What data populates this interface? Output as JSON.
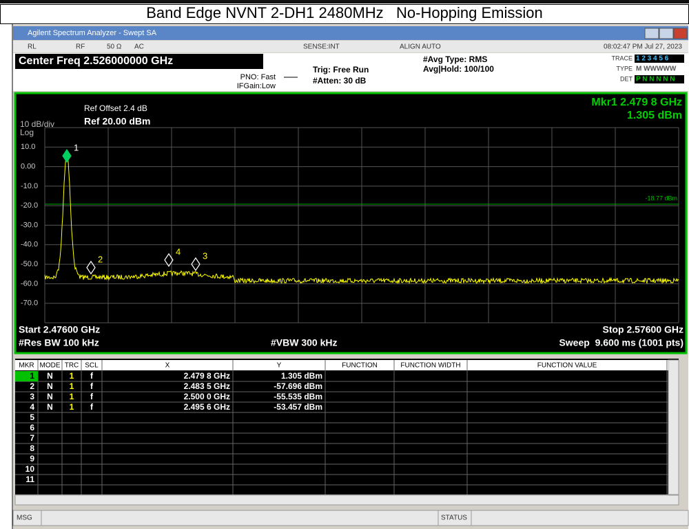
{
  "page_title": "Band Edge NVNT 2-DH1 2480MHz   No-Hopping Emission",
  "window_title": "Agilent Spectrum Analyzer - Swept SA",
  "status_row": [
    "RL",
    "RF",
    "50 Ω",
    "AC",
    "SENSE:INT",
    "ALIGN AUTO",
    "08:02:47 PM Jul 27, 2023"
  ],
  "header": {
    "center_freq": "Center Freq 2.526000000 GHz",
    "pno": "PNO: Fast",
    "ifgain": "IFGain:Low",
    "trig": "Trig: Free Run",
    "atten": "#Atten: 30 dB",
    "avg_type": "#Avg Type: RMS",
    "avg_hold": "Avg|Hold: 100/100",
    "trace": [
      "TRACE",
      "1 2 3 4 5 6"
    ],
    "type": [
      "TYPE",
      "M WWWWW"
    ],
    "det": [
      "DET",
      "P N N N N N"
    ]
  },
  "plot": {
    "ref_offset": "Ref Offset 2.4 dB",
    "scale": "10 dB/div",
    "ref_level": "Ref 20.00 dBm",
    "scale_type": "Log",
    "marker_freq": "Mkr1 2.479 8 GHz",
    "marker_amp": "1.305 dBm",
    "y_labels": [
      "10.0",
      "0.00",
      "-10.0",
      "-20.0",
      "-30.0",
      "-40.0",
      "-50.0",
      "-60.0",
      "-70.0"
    ],
    "display_line": "-18.77 dBm",
    "marker_ids": [
      "1",
      "2",
      "3",
      "4"
    ],
    "start": "Start 2.47600 GHz",
    "stop": "Stop 2.57600 GHz",
    "rbw": "#Res BW 100 kHz",
    "vbw": "#VBW 300 kHz",
    "sweep": "Sweep  9.600 ms (1001 pts)"
  },
  "marker_table": {
    "columns": [
      "MKR",
      "MODE",
      "TRC",
      "SCL",
      "X",
      "Y",
      "FUNCTION",
      "FUNCTION WIDTH",
      "FUNCTION VALUE"
    ],
    "rows": [
      [
        "1",
        "N",
        "1",
        "f",
        "2.479 8 GHz",
        "1.305 dBm"
      ],
      [
        "2",
        "N",
        "1",
        "f",
        "2.483 5 GHz",
        "-57.696 dBm"
      ],
      [
        "3",
        "N",
        "1",
        "f",
        "2.500 0 GHz",
        "-55.535 dBm"
      ],
      [
        "4",
        "N",
        "1",
        "f",
        "2.495 6 GHz",
        "-53.457 dBm"
      ],
      [
        "5"
      ],
      [
        "6"
      ],
      [
        "7"
      ],
      [
        "8"
      ],
      [
        "9"
      ],
      [
        "10"
      ],
      [
        "11"
      ]
    ]
  },
  "message_bar": {
    "msg": "MSG",
    "status": "STATUS"
  }
}
